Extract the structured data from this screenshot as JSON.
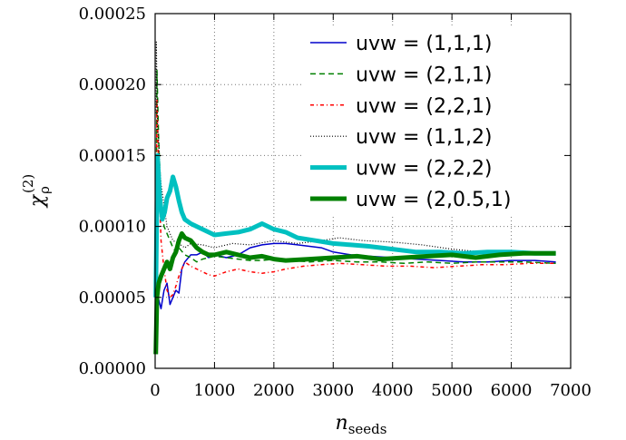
{
  "chart_data": {
    "type": "line",
    "title": "",
    "xlabel": {
      "main": "n",
      "sub": "seeds"
    },
    "ylabel": {
      "main": "χ",
      "sub": "ρ",
      "sup": "(2)"
    },
    "xlim": [
      0,
      7000
    ],
    "ylim": [
      0,
      0.00025
    ],
    "xticks": [
      0,
      1000,
      2000,
      3000,
      4000,
      5000,
      6000,
      7000
    ],
    "xtick_labels": [
      "0",
      "1000",
      "2000",
      "3000",
      "4000",
      "5000",
      "6000",
      "7000"
    ],
    "yticks": [
      0,
      5e-05,
      0.0001,
      0.00015,
      0.0002,
      0.00025
    ],
    "ytick_labels": [
      "0.00000",
      "0.00005",
      "0.00010",
      "0.00015",
      "0.00020",
      "0.00025"
    ],
    "grid": true,
    "legend_position": "top-right",
    "series": [
      {
        "name": "uvw = (1,1,1)",
        "color": "#0000cc",
        "dash": "solid",
        "width": 1.5,
        "x": [
          10,
          50,
          100,
          150,
          200,
          250,
          300,
          350,
          400,
          450,
          500,
          600,
          700,
          800,
          900,
          1000,
          1200,
          1400,
          1600,
          1800,
          2000,
          2200,
          2400,
          2600,
          2800,
          3000,
          3300,
          3600,
          4000,
          4400,
          4800,
          5200,
          5600,
          6000,
          6400,
          6750
        ],
        "y": [
          3e-05,
          5e-05,
          4.2e-05,
          5.5e-05,
          6e-05,
          4.5e-05,
          5e-05,
          5.5e-05,
          5.3e-05,
          7e-05,
          7.5e-05,
          8e-05,
          8e-05,
          8.2e-05,
          7.8e-05,
          8e-05,
          7.8e-05,
          8e-05,
          8.5e-05,
          8.7e-05,
          8.8e-05,
          8.8e-05,
          8.7e-05,
          8.6e-05,
          8.5e-05,
          8.2e-05,
          8e-05,
          7.9e-05,
          7.8e-05,
          7.7e-05,
          7.6e-05,
          7.5e-05,
          7.5e-05,
          7.6e-05,
          7.6e-05,
          7.5e-05
        ]
      },
      {
        "name": "uvw = (2,1,1)",
        "color": "#008000",
        "dash": "6,4",
        "width": 1.5,
        "x": [
          10,
          30,
          60,
          100,
          150,
          200,
          250,
          300,
          350,
          400,
          500,
          600,
          700,
          800,
          900,
          1000,
          1200,
          1400,
          1600,
          1800,
          2000,
          2300,
          2600,
          3000,
          3400,
          3800,
          4200,
          4600,
          5000,
          5400,
          5800,
          6200,
          6750
        ],
        "y": [
          5e-05,
          0.00021,
          0.00016,
          0.00012,
          0.0001,
          9.5e-05,
          9e-05,
          8.5e-05,
          8.2e-05,
          8.5e-05,
          8e-05,
          7.8e-05,
          7.5e-05,
          7.7e-05,
          7.8e-05,
          7.9e-05,
          7.8e-05,
          7.7e-05,
          7.6e-05,
          7.6e-05,
          7.7e-05,
          7.6e-05,
          7.5e-05,
          7.6e-05,
          7.5e-05,
          7.5e-05,
          7.4e-05,
          7.5e-05,
          7.4e-05,
          7.5e-05,
          7.5e-05,
          7.5e-05,
          7.4e-05
        ]
      },
      {
        "name": "uvw = (2,2,1)",
        "color": "#ff0000",
        "dash": "4,3,1,3",
        "width": 1.5,
        "x": [
          10,
          30,
          60,
          100,
          150,
          200,
          250,
          300,
          350,
          400,
          450,
          500,
          600,
          700,
          800,
          900,
          1000,
          1200,
          1400,
          1600,
          1800,
          2000,
          2200,
          2500,
          2800,
          3100,
          3500,
          3900,
          4300,
          4700,
          5100,
          5500,
          5900,
          6300,
          6750
        ],
        "y": [
          5e-05,
          0.00019,
          0.00014,
          9e-05,
          7e-05,
          5.5e-05,
          5e-05,
          5.2e-05,
          5.8e-05,
          6.5e-05,
          7e-05,
          7.5e-05,
          7.2e-05,
          7e-05,
          6.8e-05,
          6.6e-05,
          6.5e-05,
          6.8e-05,
          7e-05,
          6.8e-05,
          6.7e-05,
          6.8e-05,
          7e-05,
          7.2e-05,
          7.3e-05,
          7.4e-05,
          7.3e-05,
          7.2e-05,
          7.2e-05,
          7.1e-05,
          7.2e-05,
          7.3e-05,
          7.3e-05,
          7.4e-05,
          7.4e-05
        ]
      },
      {
        "name": "uvw = (1,1,2)",
        "color": "#000000",
        "dash": "1,2",
        "width": 1.2,
        "x": [
          10,
          20,
          40,
          60,
          80,
          100,
          150,
          200,
          250,
          300,
          400,
          500,
          600,
          800,
          1000,
          1300,
          1600,
          2000,
          2400,
          2800,
          3100,
          3500,
          4000,
          4500,
          5000,
          5500,
          6000,
          6400,
          6750
        ],
        "y": [
          0.00018,
          0.00023,
          0.00017,
          0.00016,
          0.00014,
          0.00013,
          0.000115,
          0.0001,
          9.5e-05,
          9e-05,
          8.8e-05,
          8.5e-05,
          8.8e-05,
          8.7e-05,
          8.5e-05,
          8.8e-05,
          8.7e-05,
          9e-05,
          8.8e-05,
          9e-05,
          9.2e-05,
          9e-05,
          8.9e-05,
          8.7e-05,
          8.4e-05,
          8.2e-05,
          8.2e-05,
          8.1e-05,
          8e-05
        ]
      },
      {
        "name": "uvw = (2,2,2)",
        "color": "#00c0c0",
        "dash": "solid",
        "width": 5,
        "x": [
          10,
          40,
          80,
          120,
          160,
          200,
          250,
          300,
          350,
          400,
          450,
          500,
          600,
          700,
          800,
          900,
          1000,
          1200,
          1400,
          1600,
          1800,
          2000,
          2200,
          2400,
          2700,
          3000,
          3300,
          3600,
          4000,
          4400,
          4800,
          5200,
          5600,
          6000,
          6400,
          6750
        ],
        "y": [
          5e-05,
          0.00015,
          0.00012,
          0.000105,
          0.00011,
          0.00012,
          0.000125,
          0.000135,
          0.000128,
          0.000118,
          0.00011,
          0.000105,
          0.000102,
          0.0001,
          9.8e-05,
          9.6e-05,
          9.4e-05,
          9.5e-05,
          9.6e-05,
          9.8e-05,
          0.000102,
          9.8e-05,
          9.6e-05,
          9.2e-05,
          9e-05,
          8.8e-05,
          8.7e-05,
          8.6e-05,
          8.4e-05,
          8.2e-05,
          8.2e-05,
          8.1e-05,
          8.2e-05,
          8.2e-05,
          8.1e-05,
          8.1e-05
        ]
      },
      {
        "name": "uvw = (2,0.5,1)",
        "color": "#008000",
        "dash": "solid",
        "width": 5,
        "x": [
          10,
          30,
          60,
          100,
          150,
          200,
          250,
          300,
          350,
          400,
          450,
          500,
          600,
          700,
          800,
          900,
          1000,
          1200,
          1400,
          1600,
          1800,
          2000,
          2200,
          2600,
          3000,
          3400,
          3800,
          4200,
          4600,
          5000,
          5400,
          5800,
          6200,
          6750
        ],
        "y": [
          1e-05,
          5e-05,
          6e-05,
          6.5e-05,
          7e-05,
          7.5e-05,
          7e-05,
          7.8e-05,
          8.2e-05,
          9e-05,
          9.5e-05,
          9.2e-05,
          9e-05,
          8.5e-05,
          8.2e-05,
          8e-05,
          8e-05,
          8.2e-05,
          8e-05,
          7.8e-05,
          7.9e-05,
          7.7e-05,
          7.6e-05,
          7.7e-05,
          7.8e-05,
          7.9e-05,
          7.7e-05,
          7.8e-05,
          7.9e-05,
          8e-05,
          7.8e-05,
          8e-05,
          8.1e-05,
          8.1e-05
        ]
      }
    ]
  }
}
